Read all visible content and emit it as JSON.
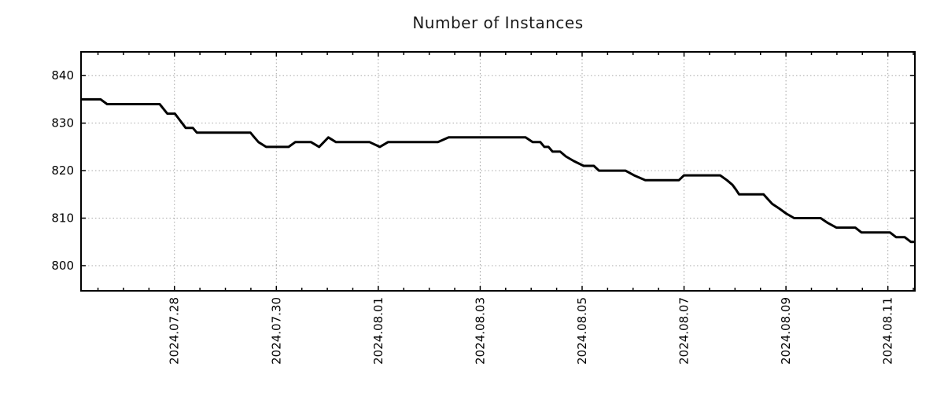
{
  "page": {
    "background": "#ffffff"
  },
  "chart_data": {
    "type": "line",
    "title": "Number of Instances",
    "title_color": "#1a1a1a",
    "line_color": "#000000",
    "line_width": 3,
    "grid_color": "#a8a8a8",
    "grid": true,
    "legend": "none",
    "x_axis": {
      "epoch_label": "2024.07.28",
      "range_days": [
        -1.833,
        14.53
      ],
      "minor_tick_step": 0.5,
      "major_ticks": [
        {
          "d": 0,
          "label": "2024.07.28"
        },
        {
          "d": 2,
          "label": "2024.07.30"
        },
        {
          "d": 4,
          "label": "2024.08.01"
        },
        {
          "d": 6,
          "label": "2024.08.03"
        },
        {
          "d": 8,
          "label": "2024.08.05"
        },
        {
          "d": 10,
          "label": "2024.08.07"
        },
        {
          "d": 12,
          "label": "2024.08.09"
        },
        {
          "d": 14,
          "label": "2024.08.11"
        }
      ]
    },
    "y_axis": {
      "range": [
        794.7,
        845
      ],
      "ticks": [
        800,
        810,
        820,
        830,
        840
      ]
    },
    "series": [
      {
        "name": "instances",
        "points": [
          [
            -1.833,
            835
          ],
          [
            -1.45,
            835
          ],
          [
            -1.32,
            834
          ],
          [
            -0.29,
            834
          ],
          [
            -0.14,
            832
          ],
          [
            0.01,
            832
          ],
          [
            0.08,
            831
          ],
          [
            0.15,
            830
          ],
          [
            0.22,
            829
          ],
          [
            0.36,
            829
          ],
          [
            0.44,
            828
          ],
          [
            1.49,
            828
          ],
          [
            1.57,
            827
          ],
          [
            1.65,
            826
          ],
          [
            1.8,
            825
          ],
          [
            2.24,
            825
          ],
          [
            2.37,
            826
          ],
          [
            2.68,
            826
          ],
          [
            2.84,
            825
          ],
          [
            3.02,
            827
          ],
          [
            3.17,
            826
          ],
          [
            3.83,
            826
          ],
          [
            4.03,
            825
          ],
          [
            4.19,
            826
          ],
          [
            5.17,
            826
          ],
          [
            5.38,
            827
          ],
          [
            6.89,
            827
          ],
          [
            7.03,
            826
          ],
          [
            7.18,
            826
          ],
          [
            7.26,
            825
          ],
          [
            7.34,
            825
          ],
          [
            7.42,
            824
          ],
          [
            7.57,
            824
          ],
          [
            7.68,
            823
          ],
          [
            7.84,
            822
          ],
          [
            8.03,
            821
          ],
          [
            8.23,
            821
          ],
          [
            8.33,
            820
          ],
          [
            8.85,
            820
          ],
          [
            9.02,
            819
          ],
          [
            9.24,
            818
          ],
          [
            9.9,
            818
          ],
          [
            10.0,
            819
          ],
          [
            10.71,
            819
          ],
          [
            10.84,
            818
          ],
          [
            10.95,
            817
          ],
          [
            11.02,
            816
          ],
          [
            11.08,
            815
          ],
          [
            11.56,
            815
          ],
          [
            11.73,
            813
          ],
          [
            11.87,
            812
          ],
          [
            12.0,
            811
          ],
          [
            12.16,
            810
          ],
          [
            12.68,
            810
          ],
          [
            12.82,
            809
          ],
          [
            12.99,
            808
          ],
          [
            13.36,
            808
          ],
          [
            13.48,
            807
          ],
          [
            14.04,
            807
          ],
          [
            14.16,
            806
          ],
          [
            14.33,
            806
          ],
          [
            14.45,
            805
          ],
          [
            14.53,
            805
          ]
        ]
      }
    ]
  }
}
